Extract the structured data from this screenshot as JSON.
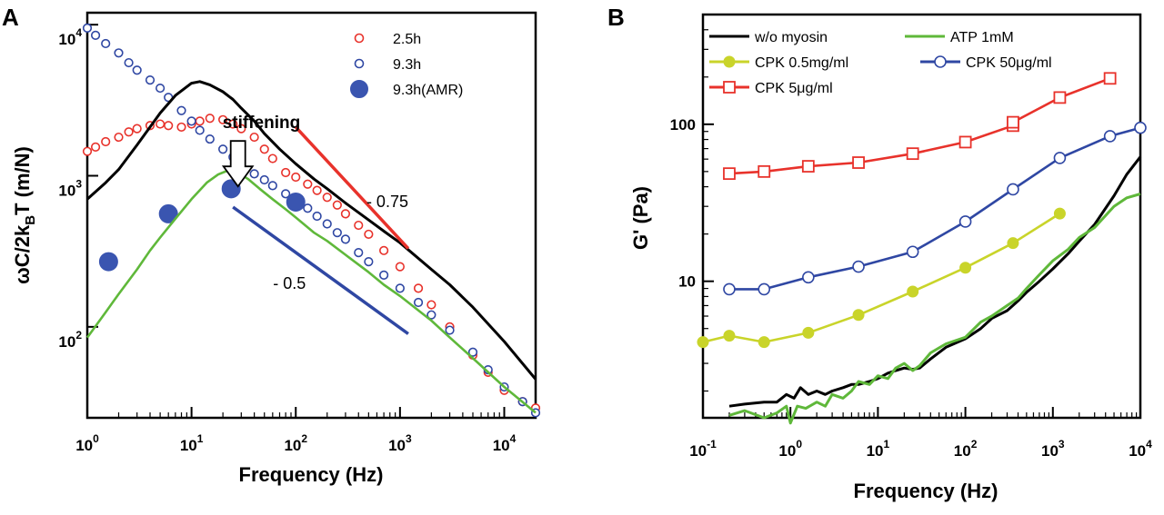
{
  "chart_data": [
    {
      "panel": "A",
      "type": "scatter",
      "xlabel": "Frequency (Hz)",
      "ylabel_main": "ωC/2k",
      "ylabel_sub": "B",
      "ylabel_tail": "T (m/N)",
      "x_scale": "log",
      "y_scale": "log",
      "xlim": [
        1,
        20000
      ],
      "ylim": [
        25,
        12000
      ],
      "x_ticks": [
        {
          "value": 1,
          "base": "10",
          "exp": "0"
        },
        {
          "value": 10,
          "base": "10",
          "exp": "1"
        },
        {
          "value": 100,
          "base": "10",
          "exp": "2"
        },
        {
          "value": 1000,
          "base": "10",
          "exp": "3"
        },
        {
          "value": 10000,
          "base": "10",
          "exp": "4"
        }
      ],
      "y_ticks": [
        {
          "value": 100,
          "base": "10",
          "exp": "2"
        },
        {
          "value": 1000,
          "base": "10",
          "exp": "3"
        },
        {
          "value": 10000,
          "base": "10",
          "exp": "4"
        }
      ],
      "grid": false,
      "legend_position": "top-right",
      "series": [
        {
          "name": "2.5h",
          "kind": "open-circle",
          "color": "#e8322b",
          "x": [
            1,
            1.2,
            1.5,
            2,
            2.5,
            3,
            4,
            5,
            6,
            8,
            10,
            12,
            15,
            20,
            25,
            30,
            40,
            50,
            60,
            80,
            100,
            130,
            160,
            200,
            250,
            300,
            400,
            500,
            700,
            1000,
            1500,
            2000,
            3000,
            5000,
            7000,
            10000,
            15000,
            20000
          ],
          "y": [
            1450,
            1550,
            1680,
            1800,
            1950,
            2050,
            2150,
            2200,
            2150,
            2100,
            2200,
            2300,
            2400,
            2350,
            2200,
            2050,
            1800,
            1500,
            1300,
            1050,
            980,
            880,
            800,
            720,
            640,
            560,
            470,
            410,
            320,
            250,
            180,
            140,
            100,
            65,
            50,
            38,
            32,
            29
          ]
        },
        {
          "name": "9.3h",
          "kind": "open-circle",
          "color": "#2f47a3",
          "x": [
            1,
            1.2,
            1.5,
            2,
            2.5,
            3,
            4,
            5,
            6,
            8,
            10,
            12,
            15,
            20,
            25,
            30,
            40,
            50,
            60,
            80,
            100,
            130,
            160,
            200,
            250,
            300,
            400,
            500,
            700,
            1000,
            1500,
            2000,
            3000,
            5000,
            7000,
            10000,
            15000,
            20000
          ],
          "y": [
            9500,
            8500,
            7500,
            6500,
            5600,
            5000,
            4300,
            3800,
            3300,
            2700,
            2300,
            2000,
            1750,
            1500,
            1330,
            1200,
            1030,
            940,
            860,
            760,
            700,
            610,
            540,
            480,
            420,
            380,
            310,
            270,
            220,
            180,
            145,
            120,
            95,
            68,
            52,
            40,
            32,
            27
          ]
        },
        {
          "name": "9.3h(AMR)",
          "kind": "filled-circle",
          "color": "#3a55b0",
          "x": [
            1.6,
            6,
            24,
            100
          ],
          "y": [
            270,
            560,
            820,
            670
          ]
        },
        {
          "name": "",
          "kind": "line",
          "color": "#000000",
          "x": [
            1,
            1.5,
            2,
            3,
            4,
            5,
            7,
            10,
            12,
            15,
            20,
            25,
            30,
            40,
            50,
            70,
            100,
            150,
            200,
            300,
            500,
            700,
            1000,
            2000,
            3000,
            5000,
            10000,
            20000
          ],
          "y": [
            700,
            900,
            1100,
            1600,
            2100,
            2600,
            3400,
            4100,
            4200,
            4000,
            3600,
            3200,
            2800,
            2300,
            1900,
            1500,
            1200,
            950,
            820,
            660,
            510,
            430,
            360,
            240,
            190,
            135,
            80,
            45
          ]
        },
        {
          "name": "",
          "kind": "line",
          "color": "#5fb83a",
          "x": [
            1,
            1.5,
            2,
            3,
            4,
            5,
            7,
            10,
            14,
            18,
            22,
            27,
            35,
            45,
            60,
            80,
            100,
            150,
            200,
            300,
            500,
            700,
            1000,
            2000,
            3000,
            5000,
            10000,
            20000
          ],
          "y": [
            85,
            125,
            165,
            240,
            320,
            390,
            520,
            700,
            900,
            1020,
            1080,
            1060,
            950,
            820,
            700,
            600,
            530,
            420,
            370,
            300,
            230,
            190,
            160,
            110,
            85,
            62,
            40,
            27
          ]
        }
      ],
      "slope_lines": [
        {
          "label": "- 0.75",
          "color": "#e8322b",
          "x": [
            100,
            1200
          ],
          "y": [
            2100,
            330
          ]
        },
        {
          "label": "- 0.5",
          "color": "#2f47a3",
          "x": [
            25,
            1200
          ],
          "y": [
            620,
            90
          ]
        }
      ],
      "annotations": [
        {
          "text": "stiffening",
          "x": 45,
          "y": 1700
        }
      ]
    },
    {
      "panel": "B",
      "type": "line",
      "xlabel": "Frequency (Hz)",
      "ylabel": "G' (Pa)",
      "x_scale": "log",
      "y_scale": "log",
      "xlim": [
        0.1,
        10000
      ],
      "ylim": [
        1.35,
        500
      ],
      "x_ticks": [
        {
          "value": 0.1,
          "base": "10",
          "exp": "-1"
        },
        {
          "value": 1,
          "base": "10",
          "exp": "0"
        },
        {
          "value": 10,
          "base": "10",
          "exp": "1"
        },
        {
          "value": 100,
          "base": "10",
          "exp": "2"
        },
        {
          "value": 1000,
          "base": "10",
          "exp": "3"
        },
        {
          "value": 10000,
          "base": "10",
          "exp": "4"
        }
      ],
      "y_ticks": [
        {
          "value": 10,
          "label": "10"
        },
        {
          "value": 100,
          "label": "100"
        }
      ],
      "grid": false,
      "legend_position": "top",
      "series": [
        {
          "name": "w/o myosin",
          "marker": "none",
          "color": "#000000",
          "x": [
            0.2,
            0.3,
            0.5,
            0.7,
            0.9,
            1.1,
            1.3,
            1.6,
            2,
            2.5,
            3,
            4,
            5,
            6,
            8,
            10,
            13,
            16,
            20,
            25,
            30,
            40,
            60,
            100,
            150,
            200,
            300,
            400,
            500,
            700,
            1000,
            1500,
            2000,
            3000,
            5000,
            7000,
            10000
          ],
          "y": [
            1.6,
            1.65,
            1.7,
            1.7,
            1.9,
            1.8,
            2.1,
            1.9,
            2,
            1.9,
            2,
            2.1,
            2.2,
            2.2,
            2.3,
            2.4,
            2.6,
            2.7,
            2.8,
            2.75,
            2.8,
            3.2,
            3.8,
            4.3,
            5,
            5.8,
            6.5,
            7.5,
            8.5,
            10,
            12,
            15,
            18,
            23,
            35,
            48,
            62
          ]
        },
        {
          "name": "ATP 1mM",
          "marker": "none",
          "color": "#5fb83a",
          "x": [
            0.2,
            0.3,
            0.5,
            0.7,
            0.9,
            1,
            1.2,
            1.5,
            2,
            2.5,
            3,
            4,
            5,
            6,
            8,
            10,
            13,
            16,
            20,
            25,
            30,
            40,
            60,
            100,
            150,
            200,
            300,
            400,
            500,
            700,
            1000,
            1500,
            2000,
            3000,
            5000,
            7000,
            10000
          ],
          "y": [
            1.4,
            1.5,
            1.35,
            1.45,
            1.6,
            1.25,
            1.6,
            1.55,
            1.7,
            1.6,
            1.9,
            1.8,
            2,
            2.3,
            2.2,
            2.5,
            2.4,
            2.8,
            3,
            2.7,
            2.9,
            3.5,
            4,
            4.4,
            5.5,
            6,
            7,
            7.8,
            9,
            11,
            13.5,
            16,
            19,
            22,
            30,
            34,
            36
          ]
        },
        {
          "name": "CPK 0.5mg/ml",
          "marker": "filled-circle",
          "color": "#c9d42a",
          "x": [
            0.1,
            0.2,
            0.5,
            1.6,
            6,
            25,
            100,
            350,
            1200
          ],
          "y": [
            4.1,
            4.5,
            4.1,
            4.7,
            6.1,
            8.6,
            12.2,
            17.5,
            27
          ]
        },
        {
          "name": "CPK 50μg/ml",
          "marker": "open-circle",
          "color": "#2f47a3",
          "x": [
            0.2,
            0.5,
            1.6,
            6,
            25,
            100,
            350,
            1200,
            4500,
            10000
          ],
          "y": [
            8.9,
            8.9,
            10.6,
            12.4,
            15.4,
            24,
            38.5,
            61,
            84,
            95
          ]
        },
        {
          "name": "CPK 5μg/ml",
          "marker": "open-square",
          "color": "#e8322b",
          "x": [
            0.2,
            0.5,
            1.6,
            6,
            25,
            100,
            350,
            350,
            1200,
            4500
          ],
          "y": [
            48.5,
            50,
            54,
            57,
            65,
            77,
            98,
            103,
            148,
            196
          ]
        }
      ]
    }
  ]
}
